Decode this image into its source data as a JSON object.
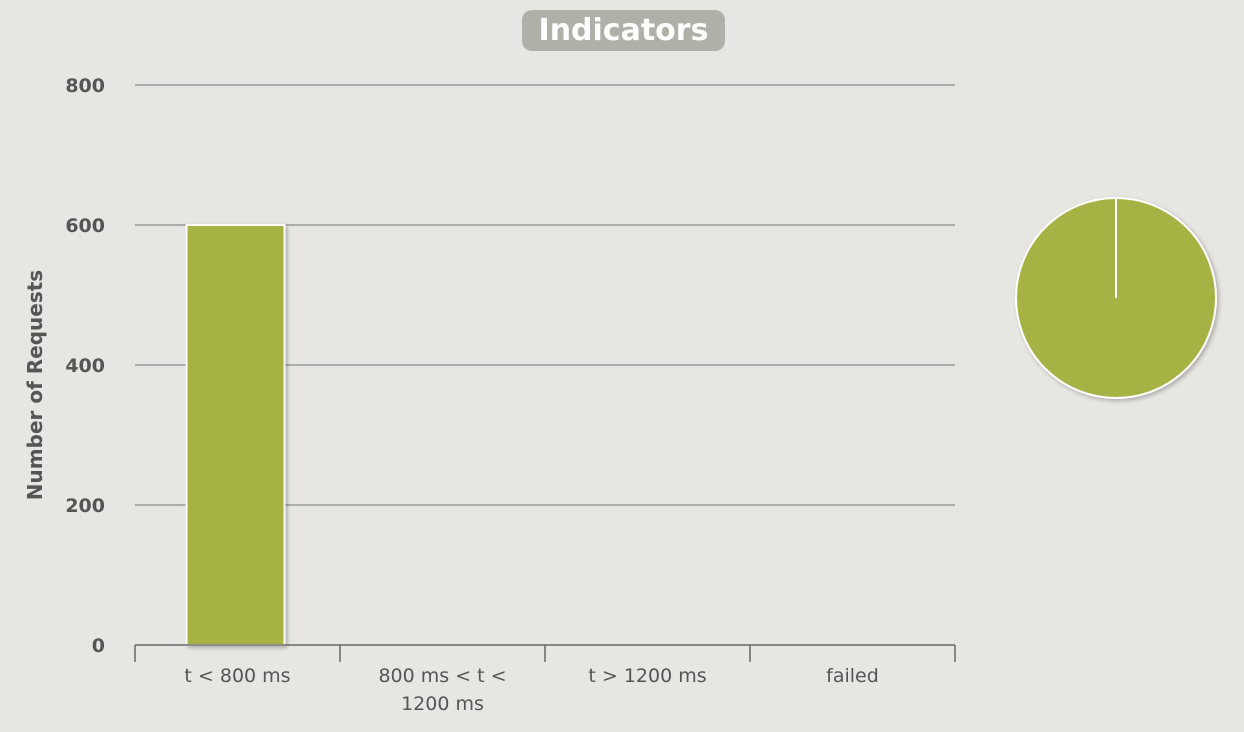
{
  "chart_data": [
    {
      "type": "bar",
      "title": "Indicators",
      "ylabel": "Number of Requests",
      "xlabel": "",
      "ylim": [
        0,
        800
      ],
      "yticks": [
        0,
        200,
        400,
        600,
        800
      ],
      "categories": [
        [
          "t < 800 ms"
        ],
        [
          "800 ms < t <",
          "1200 ms"
        ],
        [
          "t > 1200 ms"
        ],
        [
          "failed"
        ]
      ],
      "values": [
        600,
        0,
        0,
        0
      ],
      "grid": true,
      "colors": {
        "bar": "#a7b244",
        "grid": "#999999",
        "background": "#e7e6e2"
      }
    },
    {
      "type": "pie",
      "labels": [
        "t < 800 ms",
        "800 ms < t < 1200 ms",
        "t > 1200 ms",
        "failed"
      ],
      "values": [
        600,
        0,
        0,
        0
      ],
      "colors": {
        "slice": "#a7b244"
      }
    }
  ]
}
